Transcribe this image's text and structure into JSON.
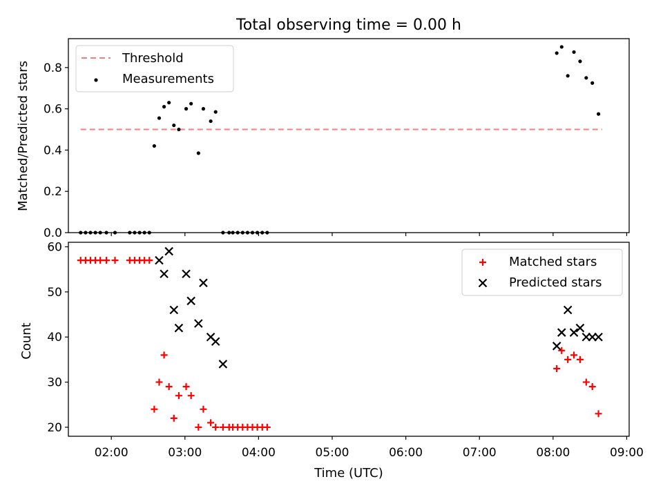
{
  "chart_data": [
    {
      "type": "scatter",
      "title": "Total observing time = 0.00 h",
      "ylabel": "Matched/Predicted stars",
      "xlim": [
        "01:25",
        "09:02"
      ],
      "ylim": [
        0,
        0.94
      ],
      "xticks": [
        "02:00",
        "03:00",
        "04:00",
        "05:00",
        "06:00",
        "07:00",
        "08:00",
        "09:00"
      ],
      "yticks": [
        0.0,
        0.2,
        0.4,
        0.6,
        0.8
      ],
      "ytick_labels": [
        "0.0",
        "0.2",
        "0.4",
        "0.6",
        "0.8"
      ],
      "legend_position": "top-left",
      "threshold": {
        "name": "Threshold",
        "y": 0.5,
        "x_from": "01:35",
        "x_to": "08:40",
        "color": "#f08080",
        "style": "dashed"
      },
      "series": [
        {
          "name": "Measurements",
          "color": "#000000",
          "marker": "dot",
          "x": [
            "01:35",
            "01:39",
            "01:43",
            "01:47",
            "01:51",
            "01:56",
            "02:03",
            "02:15",
            "02:19",
            "02:23",
            "02:27",
            "02:31",
            "02:35",
            "02:39",
            "02:43",
            "02:47",
            "02:51",
            "02:55",
            "03:01",
            "03:05",
            "03:11",
            "03:15",
            "03:21",
            "03:25",
            "03:31",
            "03:36",
            "03:39",
            "03:43",
            "03:47",
            "03:51",
            "03:55",
            "03:59",
            "04:03",
            "04:07",
            "08:03",
            "08:07",
            "08:12",
            "08:17",
            "08:22",
            "08:27",
            "08:32",
            "08:37"
          ],
          "y": [
            0,
            0,
            0,
            0,
            0,
            0,
            0,
            0,
            0,
            0,
            0,
            0,
            0.42,
            0.555,
            0.61,
            0.63,
            0.52,
            0.5,
            0.6,
            0.625,
            0.385,
            0.6,
            0.54,
            0.585,
            0,
            0,
            0,
            0,
            0,
            0,
            0,
            0,
            0,
            0,
            0.87,
            0.9,
            0.76,
            0.875,
            0.83,
            0.75,
            0.725,
            0.575
          ]
        }
      ]
    },
    {
      "type": "scatter",
      "xlabel": "Time (UTC)",
      "ylabel": "Count",
      "xlim": [
        "01:25",
        "09:02"
      ],
      "ylim": [
        18,
        61
      ],
      "xticks": [
        "02:00",
        "03:00",
        "04:00",
        "05:00",
        "06:00",
        "07:00",
        "08:00",
        "09:00"
      ],
      "yticks": [
        20,
        30,
        40,
        50,
        60
      ],
      "legend_position": "top-right",
      "series": [
        {
          "name": "Matched stars",
          "color": "#ff0000",
          "marker": "plus",
          "x": [
            "01:35",
            "01:39",
            "01:43",
            "01:47",
            "01:51",
            "01:56",
            "02:03",
            "02:15",
            "02:19",
            "02:23",
            "02:27",
            "02:31",
            "02:35",
            "02:39",
            "02:43",
            "02:47",
            "02:51",
            "02:55",
            "03:01",
            "03:05",
            "03:11",
            "03:15",
            "03:21",
            "03:25",
            "03:31",
            "03:36",
            "03:39",
            "03:43",
            "03:47",
            "03:51",
            "03:55",
            "03:59",
            "04:03",
            "04:07",
            "08:03",
            "08:07",
            "08:12",
            "08:17",
            "08:22",
            "08:27",
            "08:32",
            "08:37"
          ],
          "y": [
            57,
            57,
            57,
            57,
            57,
            57,
            57,
            57,
            57,
            57,
            57,
            57,
            24,
            30,
            36,
            29,
            22,
            27,
            29,
            27,
            20,
            24,
            21,
            20,
            20,
            20,
            20,
            20,
            20,
            20,
            20,
            20,
            20,
            20,
            33,
            37,
            35,
            36,
            35,
            30,
            29,
            23
          ]
        },
        {
          "name": "Predicted stars",
          "color": "#000000",
          "marker": "x",
          "x": [
            "02:39",
            "02:43",
            "02:47",
            "02:51",
            "02:55",
            "03:01",
            "03:05",
            "03:11",
            "03:15",
            "03:21",
            "03:25",
            "03:31",
            "08:03",
            "08:07",
            "08:12",
            "08:17",
            "08:22",
            "08:27",
            "08:32",
            "08:37"
          ],
          "y": [
            57,
            54,
            59,
            46,
            42,
            54,
            48,
            43,
            52,
            40,
            39,
            34,
            38,
            41,
            46,
            41,
            42,
            40,
            40,
            40
          ]
        }
      ]
    }
  ]
}
